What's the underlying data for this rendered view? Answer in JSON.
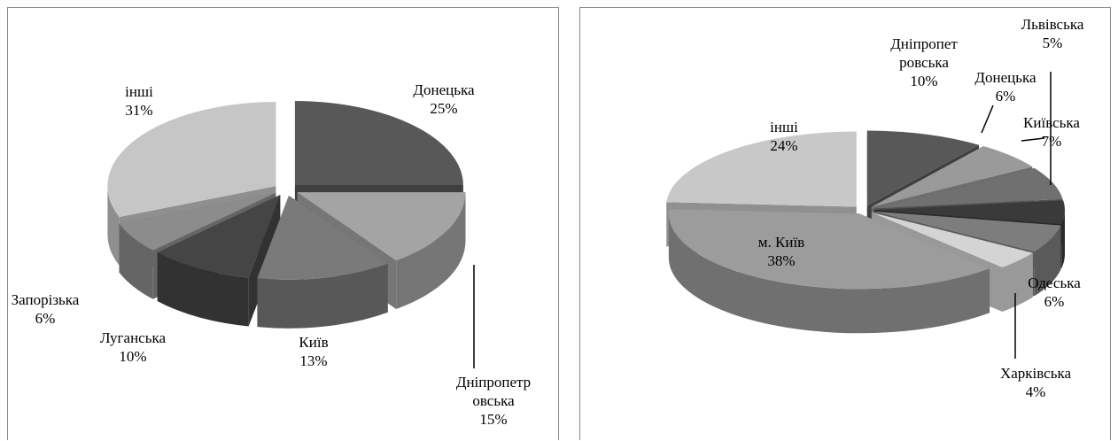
{
  "chart_data": [
    {
      "type": "pie",
      "style": "3d-exploded",
      "slices": [
        {
          "label": "Донецька",
          "value": 25,
          "display": "25%",
          "lines": [
            "Донецька"
          ],
          "color": "#585858"
        },
        {
          "label": "Дніпропетровська",
          "value": 15,
          "display": "15%",
          "lines": [
            "Дніпропетр",
            "овська"
          ],
          "color": "#a4a4a4"
        },
        {
          "label": "Київ",
          "value": 13,
          "display": "13%",
          "lines": [
            "Київ"
          ],
          "color": "#7a7a7a"
        },
        {
          "label": "Луганська",
          "value": 10,
          "display": "10%",
          "lines": [
            "Луганська"
          ],
          "color": "#454545"
        },
        {
          "label": "Запорізька",
          "value": 6,
          "display": "6%",
          "lines": [
            "Запорізька"
          ],
          "color": "#8c8c8c"
        },
        {
          "label": "інші",
          "value": 31,
          "display": "31%",
          "lines": [
            "інші"
          ],
          "color": "#c6c6c6"
        }
      ]
    },
    {
      "type": "pie",
      "style": "3d-exploded",
      "slices": [
        {
          "label": "Дніпропетровська",
          "value": 10,
          "display": "10%",
          "lines": [
            "Дніпропет",
            "ровська"
          ],
          "color": "#585858"
        },
        {
          "label": "Донецька",
          "value": 6,
          "display": "6%",
          "lines": [
            "Донецька"
          ],
          "color": "#9a9a9a"
        },
        {
          "label": "Київська",
          "value": 7,
          "display": "7%",
          "lines": [
            "Київська"
          ],
          "color": "#707070"
        },
        {
          "label": "Львівська",
          "value": 5,
          "display": "5%",
          "lines": [
            "Львівська"
          ],
          "color": "#3a3a3a"
        },
        {
          "label": "Одеська",
          "value": 6,
          "display": "6%",
          "lines": [
            "Одеська"
          ],
          "color": "#7d7d7d"
        },
        {
          "label": "Харківська",
          "value": 4,
          "display": "4%",
          "lines": [
            "Харківська"
          ],
          "color": "#d4d4d4"
        },
        {
          "label": "м. Київ",
          "value": 38,
          "display": "38%",
          "lines": [
            "м. Київ"
          ],
          "color": "#9c9c9c"
        },
        {
          "label": "інші",
          "value": 24,
          "display": "24%",
          "lines": [
            "інші"
          ],
          "color": "#c8c8c8"
        }
      ]
    }
  ]
}
